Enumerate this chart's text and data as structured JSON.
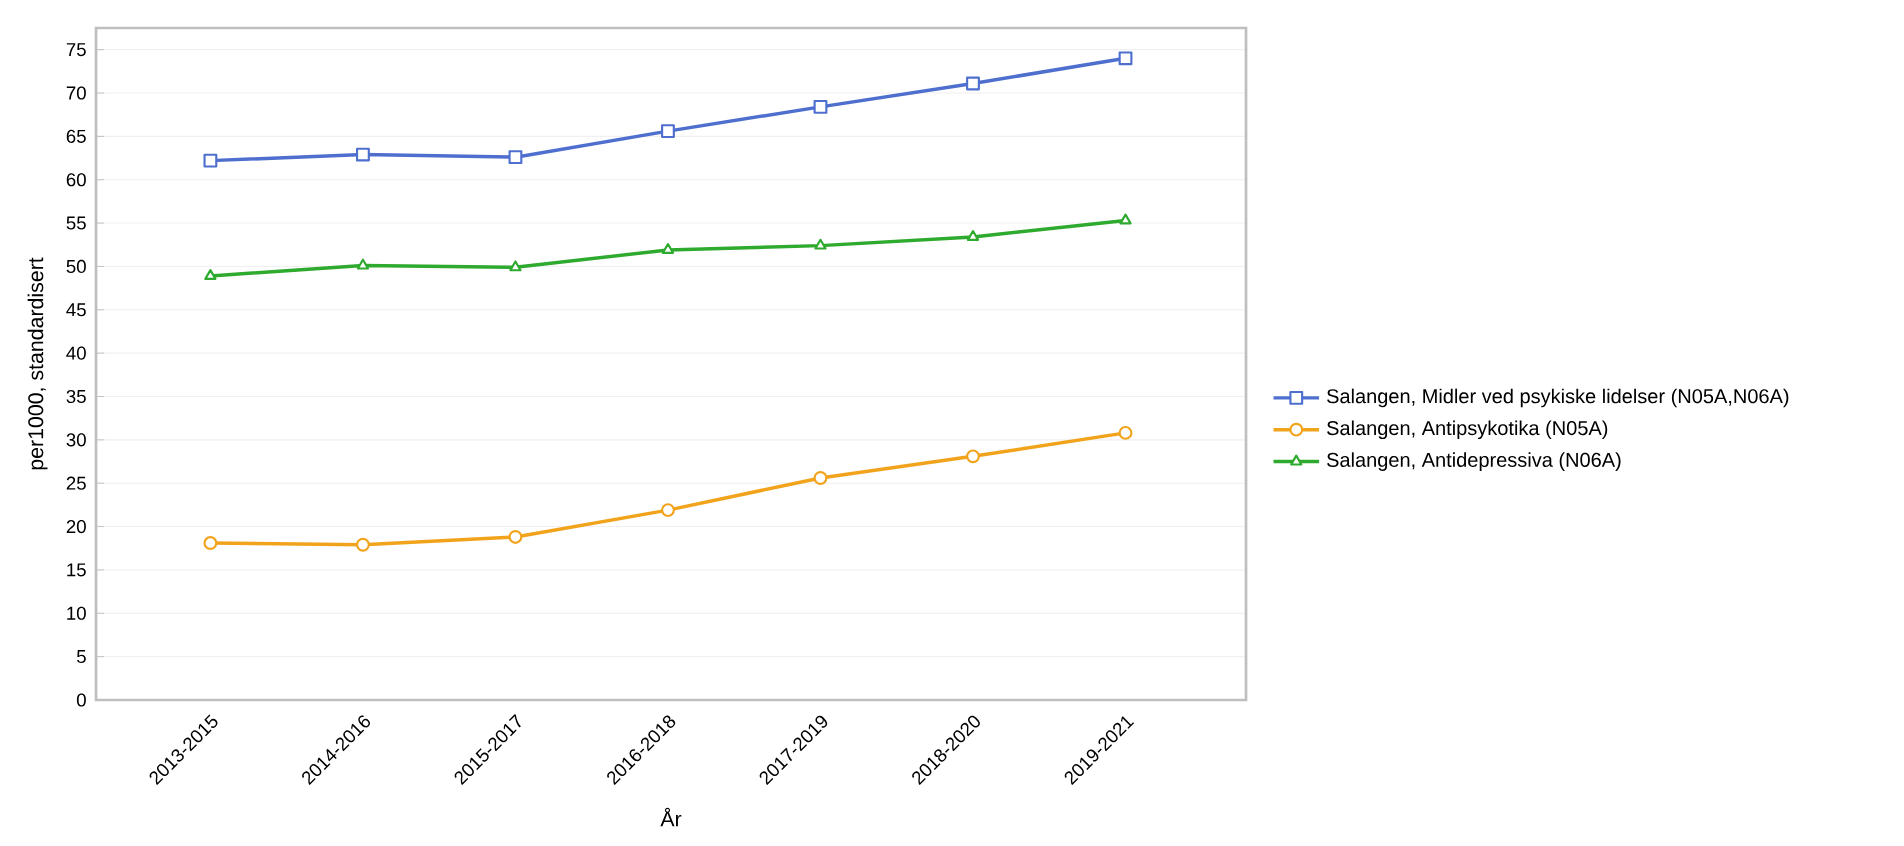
{
  "chart_data": {
    "type": "line",
    "xlabel": "År",
    "ylabel": "per1000, standardisert",
    "categories": [
      "2013-2015",
      "2014-2016",
      "2015-2017",
      "2016-2018",
      "2017-2019",
      "2018-2020",
      "2019-2021"
    ],
    "series": [
      {
        "name": "Salangen, Midler ved psykiske lidelser (N05A,N06A)",
        "color": "#4f6fcf",
        "marker": "square",
        "values": [
          62.2,
          62.9,
          62.6,
          65.6,
          68.4,
          71.1,
          74.0
        ]
      },
      {
        "name": "Salangen, Antipsykotika (N05A)",
        "color": "#f2a31c",
        "marker": "circle",
        "values": [
          18.1,
          17.9,
          18.8,
          21.9,
          25.6,
          28.1,
          30.8
        ]
      },
      {
        "name": "Salangen, Antidepressiva (N06A)",
        "color": "#2eaa2e",
        "marker": "triangle",
        "values": [
          48.9,
          50.1,
          49.9,
          51.9,
          52.4,
          53.4,
          55.3
        ]
      }
    ],
    "ylim": [
      0,
      77.5
    ],
    "yticks": [
      0,
      5,
      10,
      15,
      20,
      25,
      30,
      35,
      40,
      45,
      50,
      55,
      60,
      65,
      70,
      75
    ],
    "grid": "y",
    "legend": "right"
  }
}
